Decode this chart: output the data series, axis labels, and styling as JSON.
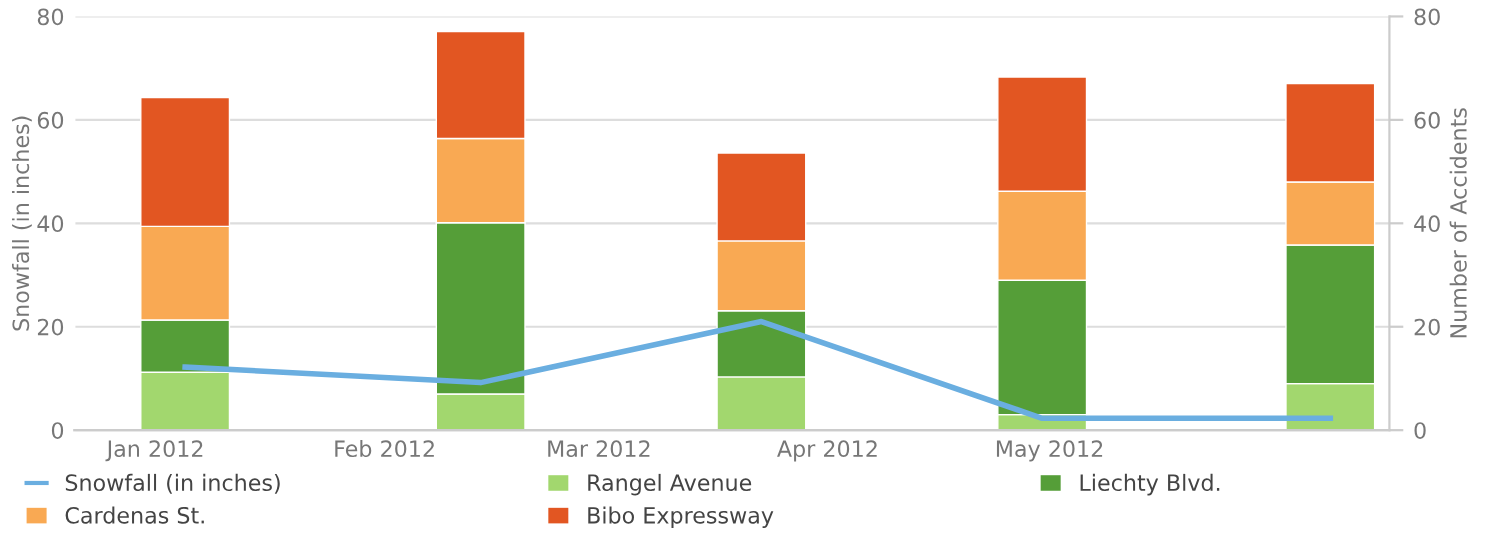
{
  "chart_data": {
    "type": "bar",
    "stacked": true,
    "x": [
      "2012-01-05",
      "2012-02-14",
      "2012-03-23",
      "2012-04-30",
      "2012-06-08"
    ],
    "series": [
      {
        "name": "Snowfall (in inches)",
        "type": "line",
        "color": "#6aaee0",
        "values": [
          12.2,
          9.2,
          21,
          2.3,
          2.3
        ]
      },
      {
        "name": "Rangel Avenue",
        "color": "#a2d76e",
        "axis": "y2",
        "values": [
          11.2,
          7,
          10.3,
          3,
          9
        ]
      },
      {
        "name": "Liechty Blvd.",
        "color": "#559e38",
        "axis": "y2",
        "values": [
          10.1,
          33.1,
          12.8,
          26,
          26.8
        ]
      },
      {
        "name": "Cardenas St.",
        "color": "#f9a953",
        "axis": "y2",
        "values": [
          18.1,
          16.3,
          13.5,
          17.2,
          12.2
        ]
      },
      {
        "name": "Bibo Expressway",
        "color": "#e25622",
        "axis": "y2",
        "values": [
          24.9,
          20.7,
          17,
          22.1,
          19
        ]
      }
    ],
    "ylabel": "Snowfall (in inches)",
    "y2label": "Number of Accidents",
    "xlim": [
      "2011-12-21",
      "2012-06-16"
    ],
    "xticks": [
      {
        "value": "2012-01-01",
        "label": "Jan 2012"
      },
      {
        "value": "2012-02-01",
        "label": "Feb 2012"
      },
      {
        "value": "2012-03-01",
        "label": "Mar 2012"
      },
      {
        "value": "2012-04-01",
        "label": "Apr 2012"
      },
      {
        "value": "2012-05-01",
        "label": "May 2012"
      }
    ],
    "ylim": [
      0,
      80
    ],
    "yticks": [
      0,
      20,
      40,
      60,
      80
    ],
    "y2lim": [
      0,
      80
    ],
    "y2ticks": [
      0,
      20,
      40,
      60,
      80
    ],
    "grid": "y",
    "legend": "bottom",
    "marker": "none",
    "line_style": "solid"
  }
}
